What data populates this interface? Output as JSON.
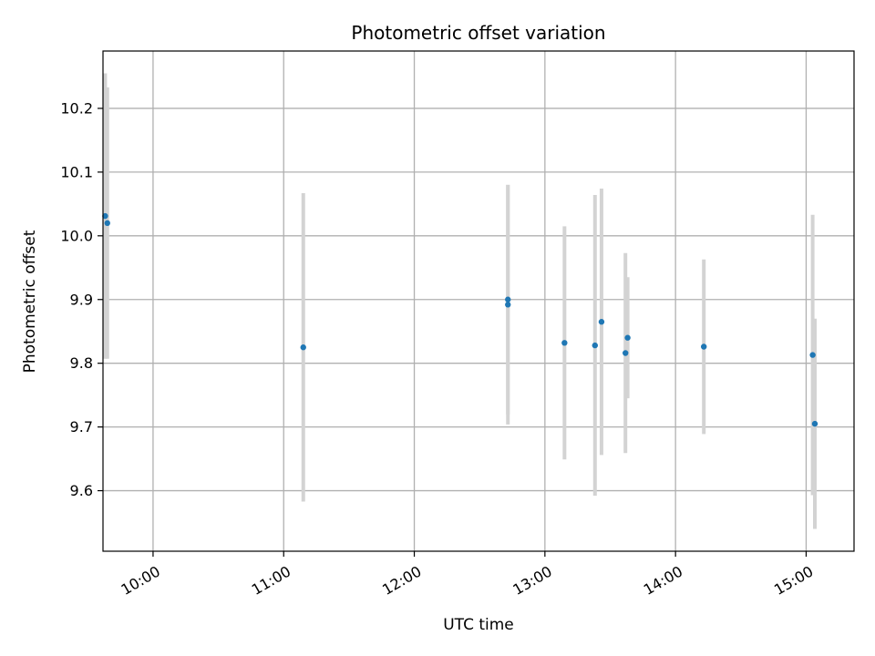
{
  "chart_data": {
    "type": "scatter",
    "title": "Photometric offset variation",
    "xlabel": "UTC time",
    "ylabel": "Photometric offset",
    "x_ticks": [
      "10:00",
      "11:00",
      "12:00",
      "13:00",
      "14:00",
      "15:00"
    ],
    "y_ticks": [
      "9.6",
      "9.7",
      "9.8",
      "9.9",
      "10.0",
      "10.1",
      "10.2"
    ],
    "xlim": [
      "09:37",
      "15:22"
    ],
    "ylim": [
      9.505,
      10.29
    ],
    "grid": true,
    "colors": {
      "marker": "#1f77b4",
      "errorbar": "#d3d3d3",
      "grid": "#b0b0b0"
    },
    "points": [
      {
        "x": "09:38",
        "y": 10.031,
        "yerr": 0.224
      },
      {
        "x": "09:39",
        "y": 10.02,
        "yerr": 0.213
      },
      {
        "x": "11:09",
        "y": 9.825,
        "yerr": 0.242
      },
      {
        "x": "12:43",
        "y": 9.9,
        "yerr": 0.18
      },
      {
        "x": "12:43",
        "y": 9.892,
        "yerr": 0.188
      },
      {
        "x": "13:09",
        "y": 9.832,
        "yerr": 0.183
      },
      {
        "x": "13:23",
        "y": 9.828,
        "yerr": 0.236
      },
      {
        "x": "13:26",
        "y": 9.865,
        "yerr": 0.209
      },
      {
        "x": "13:37",
        "y": 9.816,
        "yerr": 0.157
      },
      {
        "x": "13:38",
        "y": 9.84,
        "yerr": 0.095
      },
      {
        "x": "14:13",
        "y": 9.826,
        "yerr": 0.137
      },
      {
        "x": "15:03",
        "y": 9.813,
        "yerr": 0.22
      },
      {
        "x": "15:04",
        "y": 9.705,
        "yerr": 0.165
      }
    ]
  }
}
